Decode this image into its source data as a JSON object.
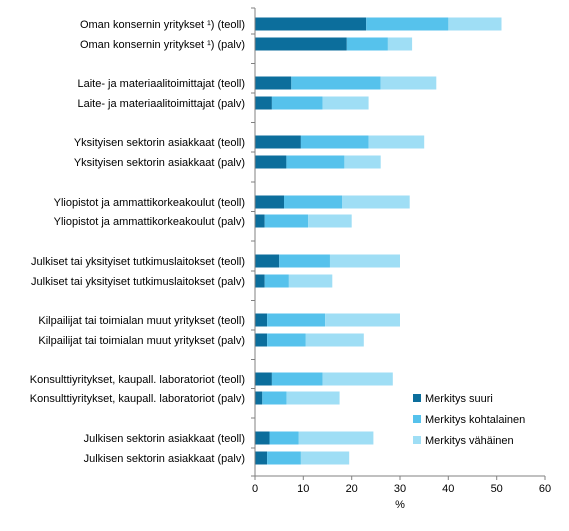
{
  "chart_data": {
    "type": "bar",
    "orientation": "horizontal",
    "stacked": true,
    "categories": [
      "Oman konsernin yritykset ¹) (teoll)",
      "Oman konsernin yritykset ¹) (palv)",
      "Laite- ja materiaalitoimittajat (teoll)",
      "Laite- ja materiaalitoimittajat (palv)",
      "Yksityisen sektorin asiakkaat (teoll)",
      "Yksityisen sektorin asiakkaat (palv)",
      "Yliopistot ja ammattikorkeakoulut (teoll)",
      "Yliopistot ja ammattikorkeakoulut (palv)",
      "Julkiset tai yksityiset tutkimuslaitokset (teoll)",
      "Julkiset tai yksityiset tutkimuslaitokset (palv)",
      "Kilpailijat tai toimialan muut yritykset (teoll)",
      "Kilpailijat tai toimialan muut yritykset (palv)",
      "Konsulttiyritykset, kaupall. laboratoriot (teoll)",
      "Konsulttiyritykset, kaupall. laboratoriot (palv)",
      "Julkisen sektorin asiakkaat (teoll)",
      "Julkisen sektorin asiakkaat (palv)"
    ],
    "series": [
      {
        "name": "Merkitys suuri",
        "color": "#0c6e9c",
        "values": [
          23.0,
          19.0,
          7.5,
          3.5,
          9.5,
          6.5,
          6.0,
          2.0,
          5.0,
          2.0,
          2.5,
          2.5,
          3.5,
          1.5,
          3.0,
          2.5
        ]
      },
      {
        "name": "Merkitys kohtalainen",
        "color": "#56c2ec",
        "values": [
          17.0,
          8.5,
          18.5,
          10.5,
          14.0,
          12.0,
          12.0,
          9.0,
          10.5,
          5.0,
          12.0,
          8.0,
          10.5,
          5.0,
          6.0,
          7.0
        ]
      },
      {
        "name": "Merkitys vähäinen",
        "color": "#9fdef5",
        "values": [
          11.0,
          5.0,
          11.5,
          9.5,
          11.5,
          7.5,
          14.0,
          9.0,
          14.5,
          9.0,
          15.5,
          12.0,
          14.5,
          11.0,
          15.5,
          10.0
        ]
      }
    ],
    "x_ticks": [
      "0",
      "10",
      "20",
      "30",
      "40",
      "50",
      "60"
    ],
    "xlim": [
      0,
      60
    ],
    "xlabel": "%",
    "ylabel": "",
    "title": "",
    "grid": false,
    "legend_position": "bottom-right"
  }
}
